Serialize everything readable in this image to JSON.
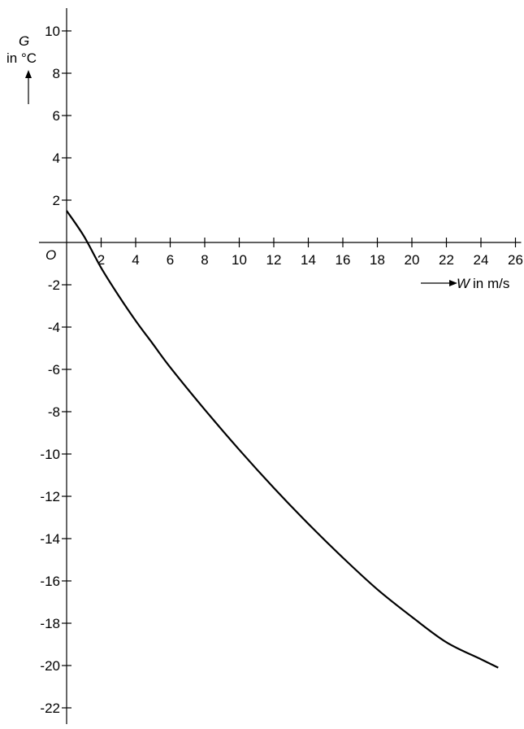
{
  "chart_data": {
    "type": "line",
    "title": "",
    "x_axis": {
      "variable": "W",
      "unit_label": "in m/s",
      "range": [
        0,
        26
      ],
      "ticks": [
        2,
        4,
        6,
        8,
        10,
        12,
        14,
        16,
        18,
        20,
        22,
        24,
        26
      ]
    },
    "y_axis": {
      "variable": "G",
      "unit_label": "in °C",
      "range": [
        -22,
        10
      ],
      "ticks": [
        10,
        8,
        6,
        4,
        2,
        -2,
        -4,
        -6,
        -8,
        -10,
        -12,
        -14,
        -16,
        -18,
        -20,
        -22
      ]
    },
    "origin_label": "O",
    "grid": false,
    "legend": "none",
    "series": [
      {
        "x": [
          0,
          1,
          2,
          3,
          4,
          5,
          6,
          8,
          10,
          12,
          14,
          16,
          18,
          20,
          22,
          24,
          25
        ],
        "y": [
          1.5,
          0.3,
          -1.2,
          -2.5,
          -3.7,
          -4.8,
          -5.9,
          -7.9,
          -9.8,
          -11.6,
          -13.3,
          -14.9,
          -16.4,
          -17.7,
          -18.9,
          -19.7,
          -20.1
        ]
      }
    ]
  }
}
